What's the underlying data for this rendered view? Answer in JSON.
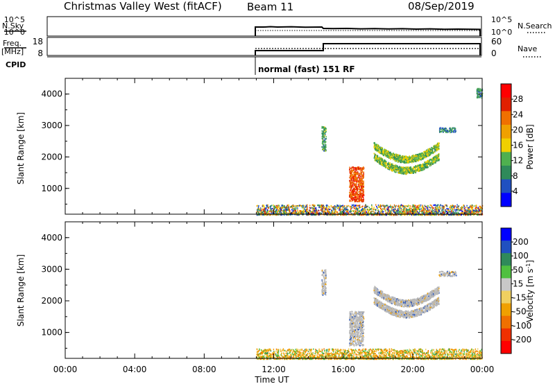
{
  "header": {
    "radar": "Christmas Valley West (fitACF)",
    "beam": "Beam 11",
    "date": "08/Sep/2019"
  },
  "panels": {
    "nsky": {
      "left_label": "N.Sky",
      "left_ticks": [
        "10^5",
        "10^0"
      ],
      "right_ticks": [
        "10^5",
        "10^0"
      ],
      "right_label": "N.Search",
      "right_legend_style": "dotted"
    },
    "freq": {
      "left_label_1": "Freq.",
      "left_label_2": "[MHz]",
      "left_ticks": [
        "18",
        "8"
      ],
      "right_ticks": [
        "60",
        "0"
      ],
      "right_label": "Nave",
      "right_legend_style": "dotted"
    },
    "cpid": {
      "label": "CPID",
      "text": "normal (fast) 151 RF"
    }
  },
  "colors": {
    "power_scale": [
      "#0000ff",
      "#2050c0",
      "#2f8a5a",
      "#4fb04f",
      "#f0d000",
      "#f0a000",
      "#f07000",
      "#e02000",
      "#ff0000"
    ],
    "velocity_scale": [
      "#ff0000",
      "#f03000",
      "#f07000",
      "#f0a000",
      "#f0d060",
      "#c8c8c8",
      "#50c040",
      "#2f8a5a",
      "#2050c0",
      "#0000ff"
    ],
    "ground_scatter": "#b8b8b8"
  },
  "chart_data": [
    {
      "type": "heatmap",
      "name": "power",
      "xlabel": "",
      "ylabel": "Slant Range [km]",
      "xlim": [
        "00:00",
        "24:00"
      ],
      "ylim": [
        180,
        4500
      ],
      "yticks": [
        "1000",
        "2000",
        "3000",
        "4000"
      ],
      "colorbar": {
        "label": "Power [dB]",
        "ticks": [
          "4",
          "8",
          "12",
          "16",
          "20",
          "24",
          "28"
        ],
        "range": [
          0,
          32
        ]
      },
      "data_start_utc": "11:00",
      "features": [
        {
          "time_start": "11:00",
          "time_end": "24:00",
          "range_start": 180,
          "range_end": 500,
          "value": 14
        },
        {
          "time_start": "14:45",
          "time_end": "15:00",
          "range_start": 2200,
          "range_end": 3000,
          "value": 10
        },
        {
          "time_start": "16:20",
          "time_end": "17:10",
          "range_start": 600,
          "range_end": 1700,
          "value": 26
        },
        {
          "time_start": "17:45",
          "time_end": "21:30",
          "range_start": 1700,
          "range_end": 2500,
          "value": 13
        },
        {
          "time_start": "21:30",
          "time_end": "22:30",
          "range_start": 2800,
          "range_end": 2950,
          "value": 8
        },
        {
          "time_start": "23:40",
          "time_end": "24:00",
          "range_start": 3900,
          "range_end": 4200,
          "value": 8
        }
      ]
    },
    {
      "type": "heatmap",
      "name": "velocity",
      "xlabel": "Time UT",
      "ylabel": "Slant Range [km]",
      "xlim": [
        "00:00",
        "24:00"
      ],
      "ylim": [
        180,
        4500
      ],
      "xticks": [
        "00:00",
        "04:00",
        "08:00",
        "12:00",
        "16:00",
        "20:00",
        "00:00"
      ],
      "yticks": [
        "1000",
        "2000",
        "3000",
        "4000"
      ],
      "colorbar": {
        "label": "Velocity [m s^-1]",
        "ticks": [
          "200",
          "100",
          "50",
          "15",
          "-15",
          "-50",
          "-100",
          "-200"
        ]
      },
      "features": [
        {
          "time_start": "11:00",
          "time_end": "24:00",
          "range_start": 180,
          "range_end": 500,
          "value": -30
        },
        {
          "time_start": "14:45",
          "time_end": "15:00",
          "range_start": 2200,
          "range_end": 3000,
          "value": 0
        },
        {
          "time_start": "16:20",
          "time_end": "17:10",
          "range_start": 600,
          "range_end": 1700,
          "value": 0
        },
        {
          "time_start": "17:45",
          "time_end": "21:30",
          "range_start": 1700,
          "range_end": 2500,
          "value": 0
        },
        {
          "time_start": "21:30",
          "time_end": "22:30",
          "range_start": 2800,
          "range_end": 2950,
          "value": 0
        }
      ]
    }
  ]
}
